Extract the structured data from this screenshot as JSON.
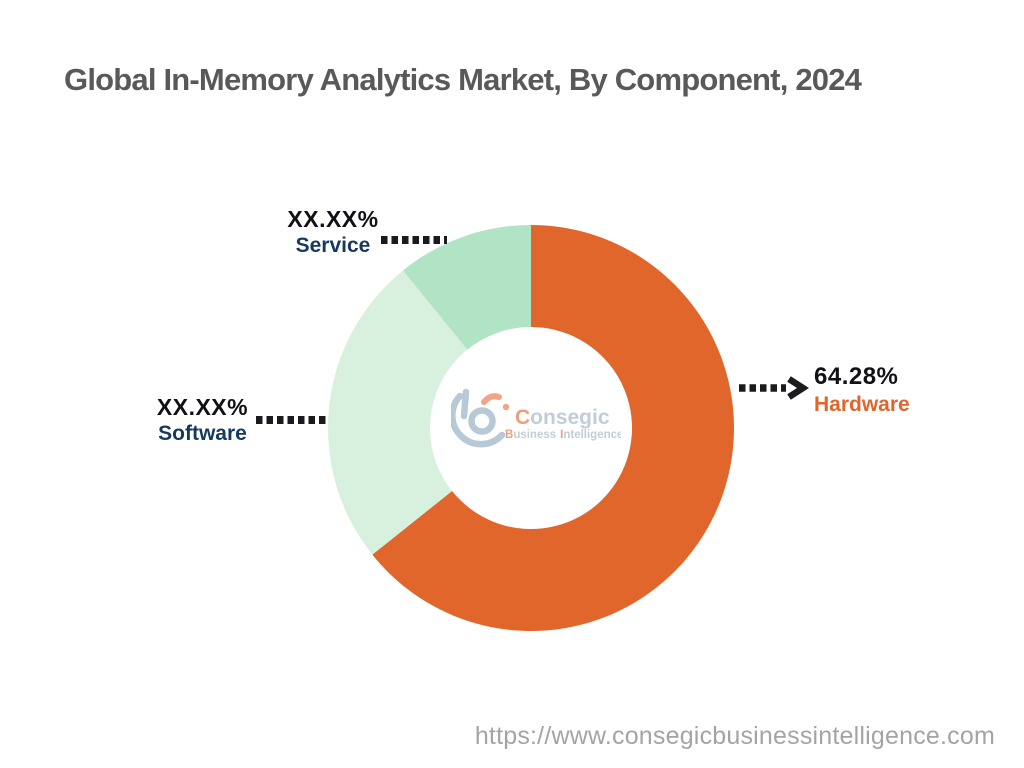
{
  "title": "Global In-Memory Analytics Market, By Component, 2024",
  "footer": {
    "url": "https://www.consegicbusinessintelligence.com"
  },
  "logo": {
    "name_c": "C",
    "name_rest": "onsegic",
    "sub_b": "B",
    "sub_rest1": "usiness",
    "sub_i": "I",
    "sub_rest2": "ntelligence"
  },
  "chart_data": {
    "type": "pie",
    "donut": true,
    "inner_radius_ratio": 0.5,
    "title": "Global In-Memory Analytics Market, By Component, 2024",
    "start_angle_deg": 0,
    "direction": "clockwise",
    "legend": "none (callout labels with dotted leader lines)",
    "segments": [
      {
        "label": "Hardware",
        "display_value": "64.28%",
        "value": 64.28,
        "color": "#E0662B",
        "label_color": "#E0662B"
      },
      {
        "label": "Software",
        "display_value": "XX.XX%",
        "value": 24.86,
        "color": "#D8F1DE",
        "label_color": "#163A5F"
      },
      {
        "label": "Service",
        "display_value": "XX.XX%",
        "value": 10.86,
        "color": "#B1E3C5",
        "label_color": "#163A5F"
      }
    ]
  }
}
